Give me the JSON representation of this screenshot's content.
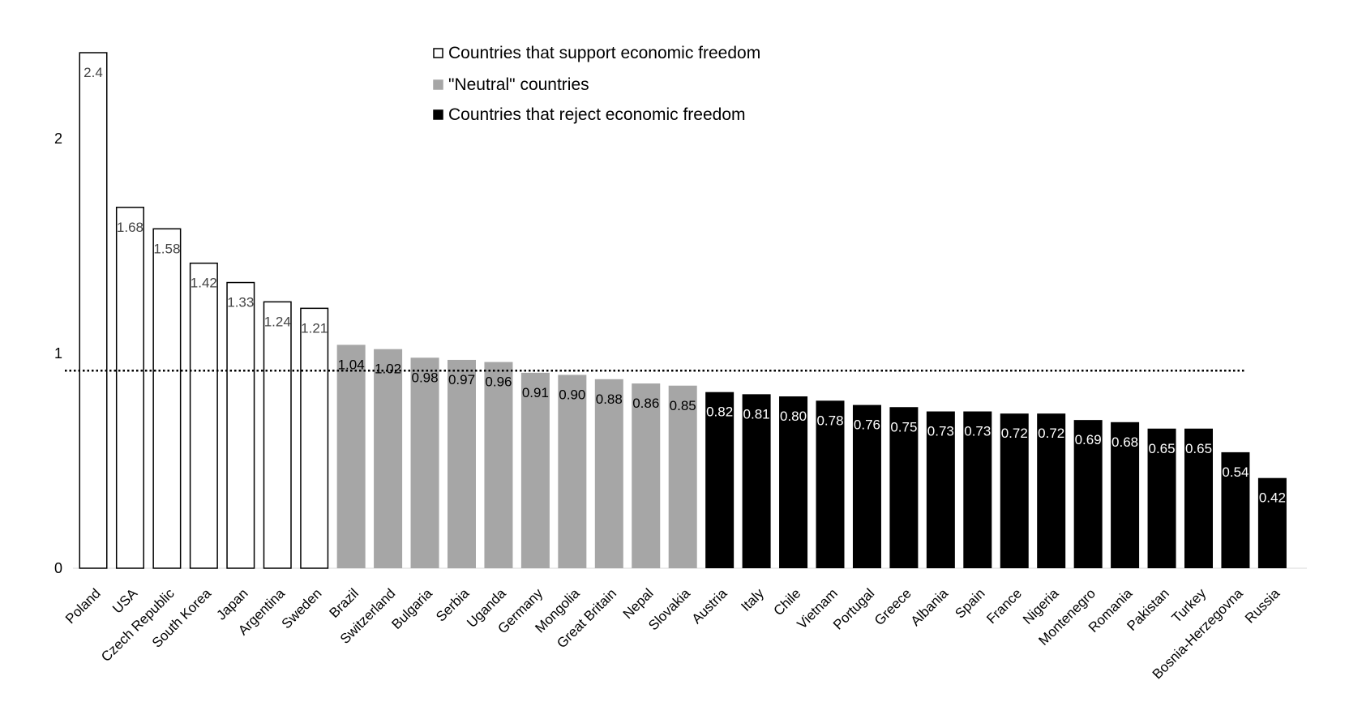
{
  "chart_data": {
    "type": "bar",
    "title": "",
    "xlabel": "",
    "ylabel": "",
    "ylim": [
      0,
      2.4
    ],
    "yticks": [
      0,
      1,
      2
    ],
    "grid": false,
    "legend_position": "top-center",
    "reference_line": {
      "y": 0.92,
      "style": "dotted"
    },
    "categories": [
      "Poland",
      "USA",
      "Czech Republic",
      "South Korea",
      "Japan",
      "Argentina",
      "Sweden",
      "Brazil",
      "Switzerland",
      "Bulgaria",
      "Serbia",
      "Uganda",
      "Germany",
      "Mongolia",
      "Great Britain",
      "Nepal",
      "Slovakia",
      "Austria",
      "Italy",
      "Chile",
      "Vietnam",
      "Portugal",
      "Greece",
      "Albania",
      "Spain",
      "France",
      "Nigeria",
      "Montenegro",
      "Romania",
      "Pakistan",
      "Turkey",
      "Bosnia-Herzegovna",
      "Russia"
    ],
    "values": [
      2.4,
      1.68,
      1.58,
      1.42,
      1.33,
      1.24,
      1.21,
      1.04,
      1.02,
      0.98,
      0.97,
      0.96,
      0.91,
      0.9,
      0.88,
      0.86,
      0.85,
      0.82,
      0.81,
      0.8,
      0.78,
      0.76,
      0.75,
      0.73,
      0.73,
      0.72,
      0.72,
      0.69,
      0.68,
      0.65,
      0.65,
      0.54,
      0.42
    ],
    "value_labels": [
      "2.4",
      "1.68",
      "1.58",
      "1.42",
      "1.33",
      "1.24",
      "1.21",
      "1.04",
      "1.02",
      "0.98",
      "0.97",
      "0.96",
      "0.91",
      "0.90",
      "0.88",
      "0.86",
      "0.85",
      "0.82",
      "0.81",
      "0.80",
      "0.78",
      "0.76",
      "0.75",
      "0.73",
      "0.73",
      "0.72",
      "0.72",
      "0.69",
      "0.68",
      "0.65",
      "0.65",
      "0.54",
      "0.42"
    ],
    "groups": [
      "support",
      "support",
      "support",
      "support",
      "support",
      "support",
      "support",
      "neutral",
      "neutral",
      "neutral",
      "neutral",
      "neutral",
      "neutral",
      "neutral",
      "neutral",
      "neutral",
      "neutral",
      "reject",
      "reject",
      "reject",
      "reject",
      "reject",
      "reject",
      "reject",
      "reject",
      "reject",
      "reject",
      "reject",
      "reject",
      "reject",
      "reject",
      "reject",
      "reject"
    ],
    "legend": [
      {
        "key": "support",
        "label": "Countries that support economic freedom",
        "fill": "#ffffff",
        "stroke": "#000000",
        "text_color": "#444444"
      },
      {
        "key": "neutral",
        "label": "\"Neutral\" countries",
        "fill": "#a6a6a6",
        "stroke": "#a6a6a6",
        "text_color": "#000000"
      },
      {
        "key": "reject",
        "label": "Countries that reject economic freedom",
        "fill": "#000000",
        "stroke": "#000000",
        "text_color": "#ffffff"
      }
    ]
  }
}
